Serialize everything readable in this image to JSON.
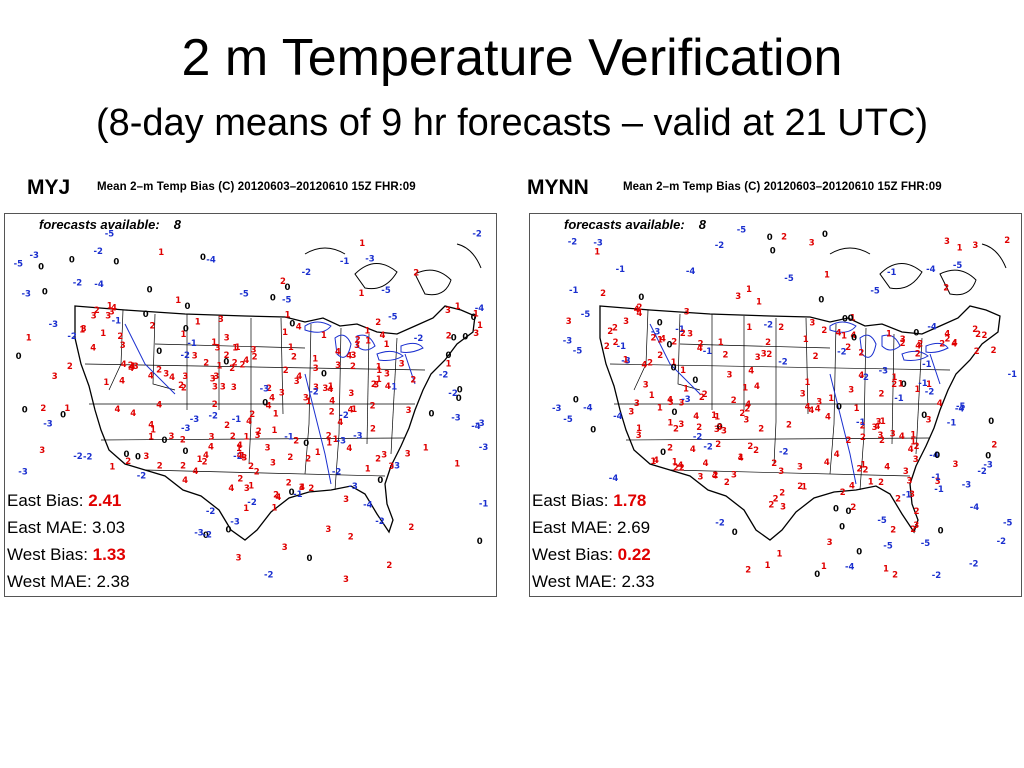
{
  "title": "2 m Temperature Verification",
  "subtitle": "(8-day means of 9 hr forecasts – valid at 21 UTC)",
  "colors": {
    "positive": "#e00000",
    "negative": "#1a2fcf",
    "zero": "#000000",
    "border": "#1a2fcf"
  },
  "panels": [
    {
      "model": "MYJ",
      "header": "Mean 2–m Temp Bias (C)  20120603–20120610 15Z  FHR:09",
      "forecasts_label": "forecasts available:",
      "forecasts_count": "8",
      "stats": {
        "east_bias_label": "East Bias:",
        "east_bias": "2.41",
        "east_mae_label": "East MAE:",
        "east_mae": "3.03",
        "west_bias_label": "West Bias:",
        "west_bias": "1.33",
        "west_mae_label": "West MAE:",
        "west_mae": "2.38"
      }
    },
    {
      "model": "MYNN",
      "header": "Mean 2–m Temp Bias (C)  20120603–20120610 15Z  FHR:09",
      "forecasts_label": "forecasts available:",
      "forecasts_count": "8",
      "stats": {
        "east_bias_label": "East Bias:",
        "east_bias": "1.78",
        "east_mae_label": "East MAE:",
        "east_mae": "2.69",
        "west_bias_label": "West Bias:",
        "west_bias": "0.22",
        "west_mae_label": "West MAE:",
        "west_mae": "2.33"
      }
    }
  ]
}
